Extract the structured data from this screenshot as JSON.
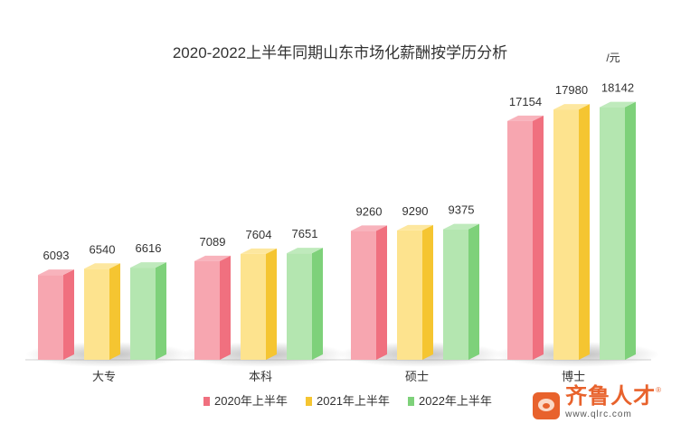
{
  "chart_data": {
    "type": "bar",
    "title": "2020-2022上半年同期山东市场化薪酬按学历分析",
    "unit_label": "/元",
    "categories": [
      "大专",
      "本科",
      "硕士",
      "博士"
    ],
    "series": [
      {
        "name": "2020年上半年",
        "color": "#f7a6b0",
        "side": "#f0707f",
        "values": [
          6093,
          7089,
          9260,
          17154
        ]
      },
      {
        "name": "2021年上半年",
        "color": "#fde38e",
        "side": "#f5c531",
        "values": [
          6540,
          7604,
          9290,
          17980
        ]
      },
      {
        "name": "2022年上半年",
        "color": "#b4e6b0",
        "side": "#7ed17a",
        "values": [
          6616,
          7651,
          9375,
          18142
        ]
      }
    ],
    "ylim": [
      0,
      20000
    ],
    "grid": false,
    "legend_position": "bottom"
  },
  "watermark": {
    "brand": "齐鲁人才",
    "url": "www.qlrc.com",
    "mark": "®",
    "icon": "qlrc-logo-icon",
    "color": "#e8622c"
  }
}
